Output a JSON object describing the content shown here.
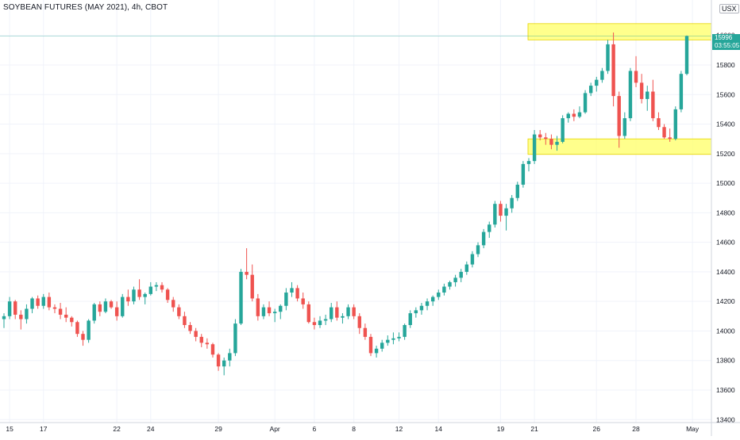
{
  "header": {
    "title": "SOYBEAN FUTURES (MAY 2021), 4h, CBOT",
    "currency": "USX"
  },
  "price_badge": {
    "price": "15996",
    "countdown": "03:55:05"
  },
  "colors": {
    "up": "#26a69a",
    "down": "#ef5350",
    "highlight": "#ffff66",
    "grid": "#f0f3fa",
    "price_line": "#26a69a"
  },
  "chart_data": {
    "type": "candlestick",
    "title": "SOYBEAN FUTURES (MAY 2021), 4h, CBOT",
    "ylim": [
      13380,
      16240
    ],
    "y_ticks": [
      13400,
      13600,
      13800,
      14000,
      14200,
      14400,
      14600,
      14800,
      15000,
      15200,
      15400,
      15600,
      15800,
      16000
    ],
    "x_ticks": [
      {
        "label": "15",
        "index": 1
      },
      {
        "label": "17",
        "index": 7
      },
      {
        "label": "22",
        "index": 20
      },
      {
        "label": "24",
        "index": 26
      },
      {
        "label": "29",
        "index": 38
      },
      {
        "label": "Apr",
        "index": 48
      },
      {
        "label": "6",
        "index": 55
      },
      {
        "label": "8",
        "index": 62
      },
      {
        "label": "12",
        "index": 70
      },
      {
        "label": "14",
        "index": 77
      },
      {
        "label": "19",
        "index": 88
      },
      {
        "label": "21",
        "index": 94
      },
      {
        "label": "26",
        "index": 105
      },
      {
        "label": "28",
        "index": 112
      },
      {
        "label": "May",
        "index": 122
      }
    ],
    "highlight_zones": [
      {
        "from": 15970,
        "to": 16080
      },
      {
        "from": 15195,
        "to": 15300
      }
    ],
    "last_price": 15996,
    "grid": true,
    "candles": [
      [
        14080,
        14120,
        14020,
        14100
      ],
      [
        14100,
        14230,
        14080,
        14200
      ],
      [
        14200,
        14210,
        14080,
        14110
      ],
      [
        14110,
        14140,
        14010,
        14080
      ],
      [
        14080,
        14180,
        14050,
        14150
      ],
      [
        14150,
        14230,
        14120,
        14220
      ],
      [
        14220,
        14240,
        14150,
        14170
      ],
      [
        14170,
        14250,
        14150,
        14230
      ],
      [
        14230,
        14260,
        14140,
        14160
      ],
      [
        14160,
        14180,
        14120,
        14150
      ],
      [
        14150,
        14190,
        14080,
        14110
      ],
      [
        14110,
        14160,
        14060,
        14090
      ],
      [
        14090,
        14100,
        14030,
        14060
      ],
      [
        14060,
        14070,
        13960,
        13980
      ],
      [
        13980,
        14000,
        13900,
        13940
      ],
      [
        13940,
        14080,
        13920,
        14070
      ],
      [
        14070,
        14190,
        14050,
        14180
      ],
      [
        14180,
        14200,
        14100,
        14130
      ],
      [
        14130,
        14220,
        14120,
        14200
      ],
      [
        14200,
        14210,
        14150,
        14160
      ],
      [
        14160,
        14200,
        14070,
        14100
      ],
      [
        14100,
        14250,
        14090,
        14230
      ],
      [
        14230,
        14280,
        14170,
        14200
      ],
      [
        14200,
        14300,
        14180,
        14280
      ],
      [
        14280,
        14350,
        14210,
        14230
      ],
      [
        14230,
        14260,
        14180,
        14250
      ],
      [
        14250,
        14330,
        14240,
        14300
      ],
      [
        14300,
        14330,
        14270,
        14310
      ],
      [
        14310,
        14330,
        14260,
        14280
      ],
      [
        14280,
        14290,
        14190,
        14210
      ],
      [
        14210,
        14230,
        14130,
        14160
      ],
      [
        14160,
        14180,
        14080,
        14100
      ],
      [
        14100,
        14130,
        14020,
        14040
      ],
      [
        14040,
        14060,
        13980,
        14000
      ],
      [
        14000,
        14020,
        13930,
        13960
      ],
      [
        13960,
        13980,
        13890,
        13920
      ],
      [
        13920,
        13950,
        13880,
        13910
      ],
      [
        13910,
        13920,
        13820,
        13840
      ],
      [
        13840,
        13850,
        13730,
        13760
      ],
      [
        13760,
        13820,
        13700,
        13800
      ],
      [
        13800,
        13880,
        13760,
        13850
      ],
      [
        13850,
        14080,
        13830,
        14050
      ],
      [
        14050,
        14420,
        14040,
        14400
      ],
      [
        14400,
        14560,
        14350,
        14380
      ],
      [
        14380,
        14450,
        14200,
        14220
      ],
      [
        14220,
        14250,
        14070,
        14100
      ],
      [
        14100,
        14180,
        14080,
        14160
      ],
      [
        14160,
        14200,
        14100,
        14120
      ],
      [
        14120,
        14150,
        14060,
        14130
      ],
      [
        14130,
        14180,
        14080,
        14170
      ],
      [
        14170,
        14290,
        14140,
        14260
      ],
      [
        14260,
        14330,
        14230,
        14290
      ],
      [
        14290,
        14310,
        14200,
        14220
      ],
      [
        14220,
        14260,
        14150,
        14180
      ],
      [
        14180,
        14200,
        14050,
        14060
      ],
      [
        14060,
        14090,
        14010,
        14040
      ],
      [
        14040,
        14100,
        14020,
        14070
      ],
      [
        14070,
        14110,
        14040,
        14080
      ],
      [
        14080,
        14190,
        14060,
        14160
      ],
      [
        14160,
        14200,
        14070,
        14090
      ],
      [
        14090,
        14120,
        14050,
        14100
      ],
      [
        14100,
        14180,
        14080,
        14160
      ],
      [
        14160,
        14180,
        14080,
        14100
      ],
      [
        14100,
        14120,
        13980,
        14020
      ],
      [
        14020,
        14050,
        13940,
        13960
      ],
      [
        13960,
        13980,
        13830,
        13850
      ],
      [
        13850,
        13900,
        13820,
        13880
      ],
      [
        13880,
        13940,
        13860,
        13920
      ],
      [
        13920,
        13970,
        13900,
        13940
      ],
      [
        13940,
        13990,
        13910,
        13950
      ],
      [
        13950,
        13990,
        13930,
        13960
      ],
      [
        13960,
        14050,
        13940,
        14040
      ],
      [
        14040,
        14140,
        14020,
        14120
      ],
      [
        14120,
        14160,
        14090,
        14140
      ],
      [
        14140,
        14190,
        14110,
        14170
      ],
      [
        14170,
        14220,
        14140,
        14200
      ],
      [
        14200,
        14240,
        14170,
        14230
      ],
      [
        14230,
        14280,
        14210,
        14260
      ],
      [
        14260,
        14320,
        14240,
        14300
      ],
      [
        14300,
        14340,
        14280,
        14330
      ],
      [
        14330,
        14380,
        14300,
        14360
      ],
      [
        14360,
        14420,
        14330,
        14400
      ],
      [
        14400,
        14470,
        14380,
        14450
      ],
      [
        14450,
        14540,
        14430,
        14520
      ],
      [
        14520,
        14600,
        14500,
        14580
      ],
      [
        14580,
        14690,
        14560,
        14670
      ],
      [
        14670,
        14740,
        14630,
        14720
      ],
      [
        14720,
        14880,
        14700,
        14860
      ],
      [
        14860,
        14880,
        14740,
        14780
      ],
      [
        14780,
        14860,
        14680,
        14830
      ],
      [
        14830,
        14920,
        14800,
        14900
      ],
      [
        14900,
        15010,
        14880,
        14990
      ],
      [
        14990,
        15150,
        14970,
        15130
      ],
      [
        15130,
        15170,
        15080,
        15150
      ],
      [
        15150,
        15360,
        15130,
        15330
      ],
      [
        15330,
        15360,
        15290,
        15310
      ],
      [
        15310,
        15340,
        15260,
        15300
      ],
      [
        15300,
        15330,
        15230,
        15260
      ],
      [
        15260,
        15320,
        15220,
        15280
      ],
      [
        15280,
        15460,
        15270,
        15440
      ],
      [
        15440,
        15480,
        15410,
        15470
      ],
      [
        15470,
        15500,
        15420,
        15450
      ],
      [
        15450,
        15520,
        15440,
        15480
      ],
      [
        15480,
        15630,
        15470,
        15610
      ],
      [
        15610,
        15680,
        15590,
        15660
      ],
      [
        15660,
        15720,
        15620,
        15700
      ],
      [
        15700,
        15780,
        15680,
        15760
      ],
      [
        15760,
        15970,
        15740,
        15940
      ],
      [
        15940,
        16020,
        15520,
        15590
      ],
      [
        15590,
        15620,
        15240,
        15320
      ],
      [
        15320,
        15480,
        15300,
        15440
      ],
      [
        15440,
        15780,
        15420,
        15760
      ],
      [
        15760,
        15860,
        15650,
        15680
      ],
      [
        15680,
        15740,
        15540,
        15570
      ],
      [
        15570,
        15660,
        15490,
        15620
      ],
      [
        15620,
        15700,
        15420,
        15440
      ],
      [
        15440,
        15480,
        15360,
        15380
      ],
      [
        15380,
        15400,
        15300,
        15310
      ],
      [
        15310,
        15370,
        15280,
        15300
      ],
      [
        15300,
        15520,
        15290,
        15500
      ],
      [
        15500,
        15760,
        15480,
        15740
      ],
      [
        15740,
        16000,
        15730,
        15996
      ]
    ]
  }
}
